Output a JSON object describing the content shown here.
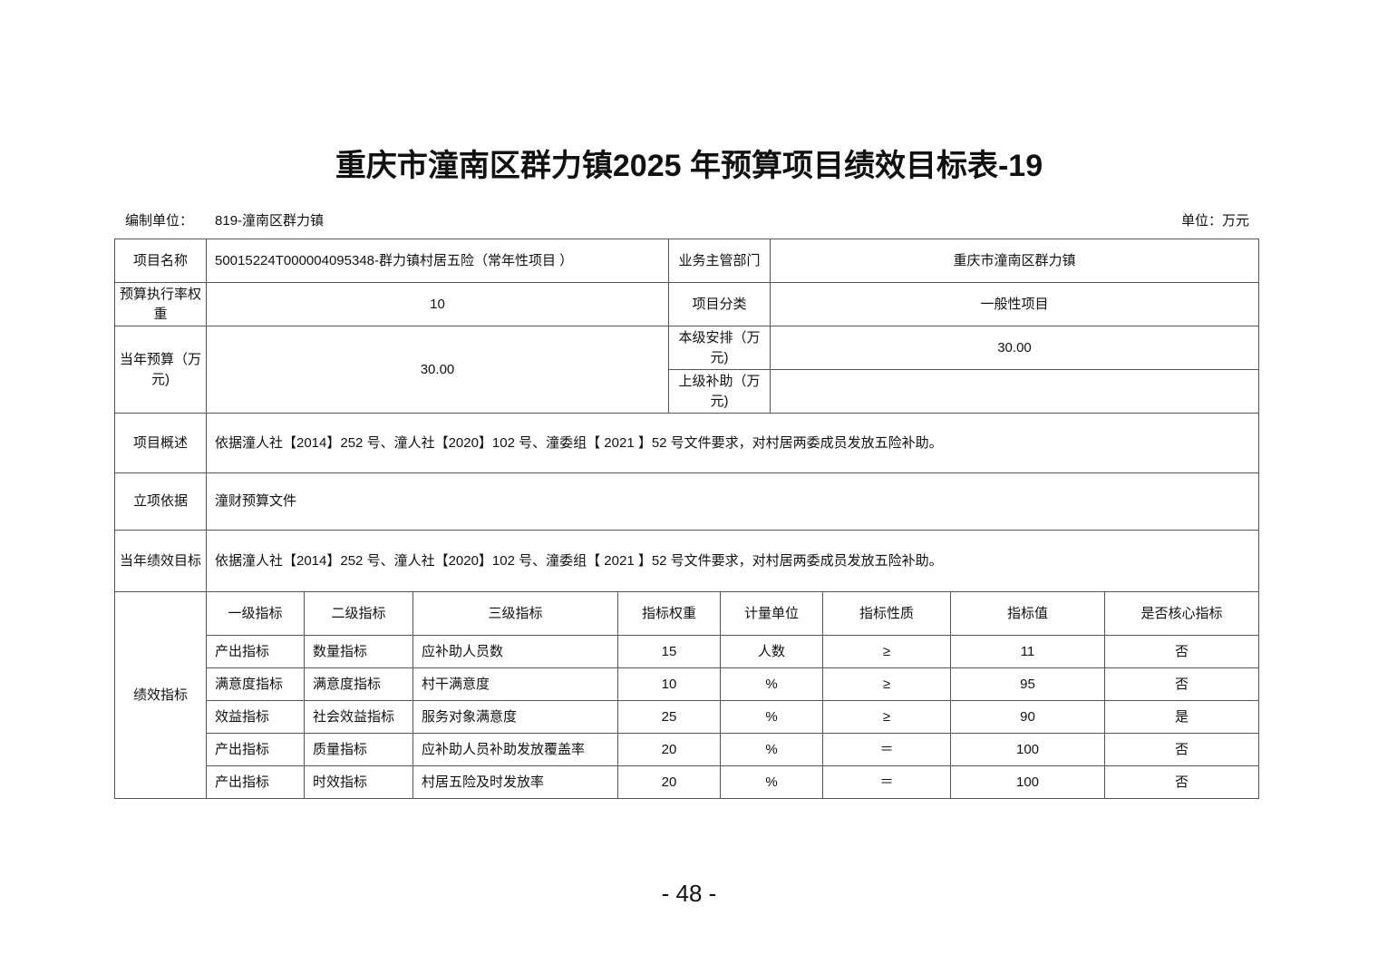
{
  "title": "重庆市潼南区群力镇2025 年预算项目绩效目标表-19",
  "header": {
    "unit_label": "编制单位：",
    "unit_value": "819-潼南区群力镇",
    "currency": "单位：万元"
  },
  "info": {
    "project_name_label": "项目名称",
    "project_name": "50015224T000004095348-群力镇村居五险（常年性项目 ）",
    "dept_label": "业务主管部门",
    "dept": "重庆市潼南区群力镇",
    "weight_label": "预算执行率权重",
    "weight": "10",
    "category_label": "项目分类",
    "category": "一般性项目",
    "budget_label": "当年预算（万元)",
    "budget": "30.00",
    "local_label": "本级安排（万元)",
    "local": "30.00",
    "upper_label": "上级补助（万元)",
    "upper": "",
    "overview_label": "项目概述",
    "overview": "依据潼人社【2014】252 号、潼人社【2020】102 号、潼委组【 2021 】52 号文件要求，对村居两委成员发放五险补助。",
    "basis_label": "立项依据",
    "basis": "潼财预算文件",
    "goal_label": "当年绩效目标",
    "goal": "依据潼人社【2014】252 号、潼人社【2020】102 号、潼委组【 2021 】52 号文件要求，对村居两委成员发放五险补助。"
  },
  "metrics": {
    "label": "绩效指标",
    "headers": [
      "一级指标",
      "二级指标",
      "三级指标",
      "指标权重",
      "计量单位",
      "指标性质",
      "指标值",
      "是否核心指标"
    ],
    "rows": [
      [
        "产出指标",
        "数量指标",
        "应补助人员数",
        "15",
        "人数",
        "≥",
        "11",
        "否"
      ],
      [
        "满意度指标",
        "满意度指标",
        "村干满意度",
        "10",
        "%",
        "≥",
        "95",
        "否"
      ],
      [
        "效益指标",
        "社会效益指标",
        "服务对象满意度",
        "25",
        "%",
        "≥",
        "90",
        "是"
      ],
      [
        "产出指标",
        "质量指标",
        "应补助人员补助发放覆盖率",
        "20",
        "%",
        "＝",
        "100",
        "否"
      ],
      [
        "产出指标",
        "时效指标",
        "村居五险及时发放率",
        "20",
        "%",
        "＝",
        "100",
        "否"
      ]
    ]
  },
  "page_number": "- 48 -"
}
